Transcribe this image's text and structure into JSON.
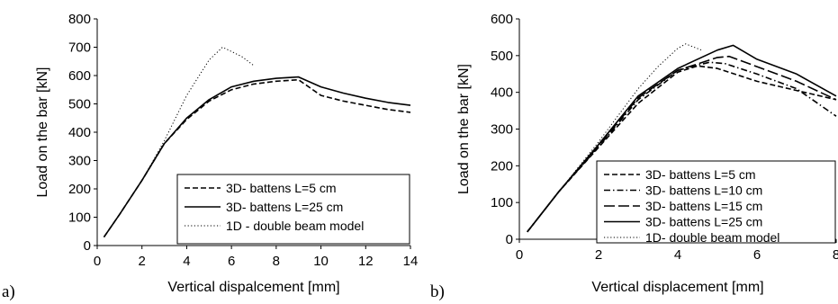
{
  "chart_data": [
    {
      "panel": "a)",
      "type": "line",
      "title": "",
      "xlabel": "Vertical dispalcement [mm]",
      "ylabel": "Load on the bar [kN]",
      "xlim": [
        0,
        14
      ],
      "ylim": [
        0,
        800
      ],
      "xticks": [
        0,
        2,
        4,
        6,
        8,
        10,
        12,
        14
      ],
      "yticks": [
        0,
        100,
        200,
        300,
        400,
        500,
        600,
        700,
        800
      ],
      "grid": false,
      "legend_position": "bottom-right",
      "series": [
        {
          "name": "3D- battens L=5 cm",
          "dash": "dashed",
          "x": [
            0.3,
            1,
            2,
            3,
            4,
            5,
            6,
            7,
            8,
            9,
            10,
            11,
            12,
            13,
            14
          ],
          "y": [
            30,
            110,
            230,
            360,
            445,
            510,
            550,
            570,
            580,
            585,
            530,
            510,
            495,
            480,
            470
          ]
        },
        {
          "name": "3D- battens L=25 cm",
          "dash": "solid",
          "x": [
            0.3,
            1,
            2,
            3,
            4,
            5,
            6,
            7,
            8,
            9,
            10,
            11,
            12,
            13,
            14
          ],
          "y": [
            30,
            110,
            230,
            360,
            450,
            515,
            560,
            580,
            590,
            595,
            560,
            538,
            520,
            505,
            495
          ]
        },
        {
          "name": "1D - double beam model",
          "dash": "dotted",
          "x": [
            0.3,
            1,
            2,
            3,
            4,
            5,
            5.6,
            6,
            6.5,
            7
          ],
          "y": [
            30,
            110,
            230,
            370,
            530,
            655,
            700,
            685,
            665,
            635
          ]
        }
      ]
    },
    {
      "panel": "b)",
      "type": "line",
      "title": "",
      "xlabel": "Vertical displacement [mm]",
      "ylabel": "Load on the bar [kN]",
      "xlim": [
        0,
        8
      ],
      "ylim": [
        0,
        600
      ],
      "xticks": [
        0,
        2,
        4,
        6,
        8
      ],
      "yticks": [
        0,
        100,
        200,
        300,
        400,
        500,
        600
      ],
      "grid": false,
      "legend_position": "bottom-right",
      "series": [
        {
          "name": "3D- battens L=5 cm",
          "dash": "dashed",
          "x": [
            0.2,
            1,
            2,
            3,
            4,
            4.5,
            5,
            6,
            7,
            8
          ],
          "y": [
            20,
            130,
            250,
            370,
            455,
            472,
            465,
            430,
            405,
            380
          ]
        },
        {
          "name": "3D- battens L=10 cm",
          "dash": "dashdot",
          "x": [
            0.2,
            1,
            2,
            3,
            4,
            4.8,
            5.2,
            6,
            7,
            8
          ],
          "y": [
            20,
            130,
            252,
            380,
            460,
            482,
            478,
            450,
            410,
            335
          ]
        },
        {
          "name": "3D- battens L=15 cm",
          "dash": "longdash",
          "x": [
            0.2,
            1,
            2,
            3,
            4,
            5,
            5.3,
            6,
            7,
            8
          ],
          "y": [
            20,
            130,
            255,
            385,
            460,
            495,
            498,
            470,
            430,
            380
          ]
        },
        {
          "name": "3D- battens L=25 cm",
          "dash": "solid",
          "x": [
            0.2,
            1,
            2,
            3,
            4,
            5,
            5.4,
            6,
            7,
            8
          ],
          "y": [
            20,
            130,
            258,
            390,
            465,
            515,
            528,
            490,
            450,
            390
          ]
        },
        {
          "name": "1D- double beam model",
          "dash": "dotted",
          "x": [
            0.2,
            1,
            2,
            3,
            3.5,
            4,
            4.2,
            4.6
          ],
          "y": [
            20,
            130,
            265,
            410,
            470,
            520,
            532,
            515
          ]
        }
      ]
    }
  ]
}
